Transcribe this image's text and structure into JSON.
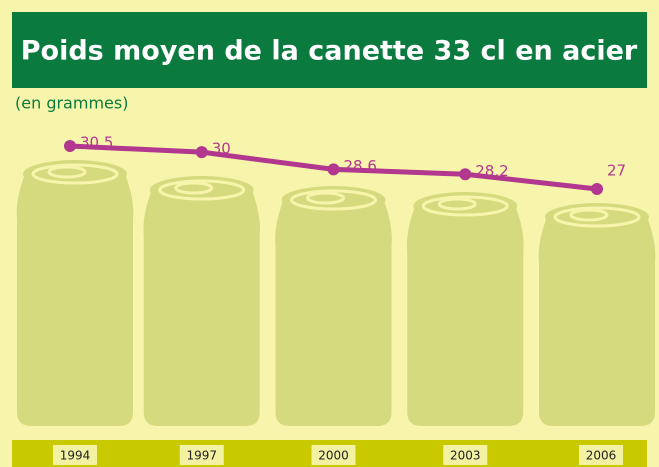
{
  "chart_data": {
    "type": "line",
    "title": "Poids moyen de la canette 33 cl en acier",
    "subtitle": "(en grammes)",
    "categories": [
      "1994",
      "1997",
      "2000",
      "2003",
      "2006"
    ],
    "values": [
      30.5,
      30,
      28.6,
      28.2,
      27
    ],
    "value_labels": [
      "30,5",
      "30",
      "28,6",
      "28,2",
      "27"
    ],
    "color": "#b2388f"
  }
}
